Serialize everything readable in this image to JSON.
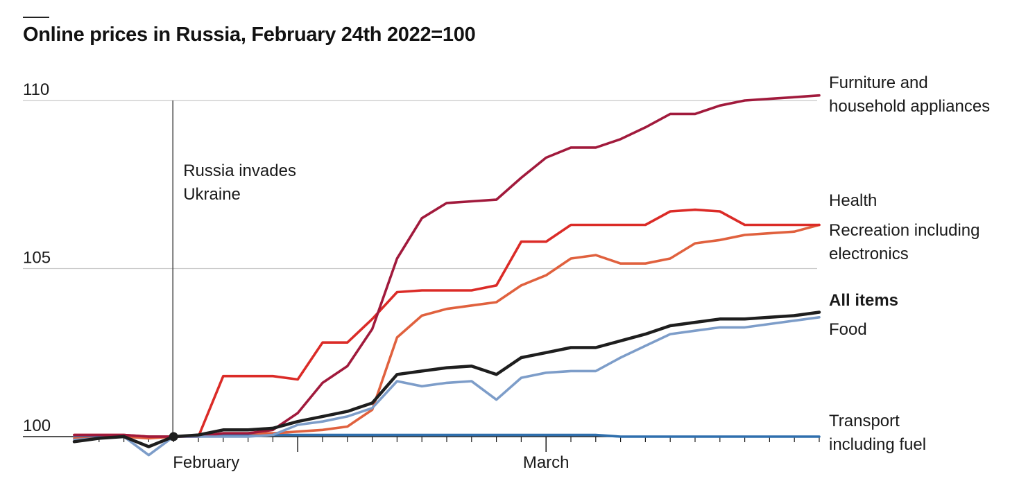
{
  "title": "Online prices in Russia, February 24th 2022=100",
  "colors": {
    "furniture": "#a11a3c",
    "health": "#db2b27",
    "recreation": "#e0613e",
    "all_items": "#1e1e1e",
    "food": "#7d9dc9",
    "transport": "#2f6fad",
    "gridline": "#c8c8c8",
    "axis": "#1a1a1a"
  },
  "annotation": {
    "lines": [
      "Russia invades",
      "Ukraine"
    ],
    "x_index": 4
  },
  "chart_data": {
    "type": "line",
    "title": "Online prices in Russia, February 24th 2022=100",
    "xlabel": "",
    "ylabel": "",
    "ylim": [
      100,
      110
    ],
    "yticks": [
      100,
      105,
      110
    ],
    "x_count": 31,
    "x_tick_labels": [
      {
        "label": "February",
        "index": 4
      },
      {
        "label": "March",
        "index": 19
      }
    ],
    "major_tick_indices": [
      9,
      19
    ],
    "grid": true,
    "legend": "direct labels at right",
    "baseline_marker_index": 4,
    "series": [
      {
        "key": "furniture",
        "name": "Furniture and household appliances",
        "label_lines": [
          "Furniture and",
          "household appliances"
        ],
        "bold": false,
        "values": [
          100.05,
          100.05,
          100.05,
          100.0,
          100.0,
          100.0,
          100.1,
          100.1,
          100.2,
          100.7,
          101.6,
          102.1,
          103.2,
          105.3,
          106.5,
          106.95,
          107.0,
          107.05,
          107.7,
          108.3,
          108.6,
          108.6,
          108.85,
          109.2,
          109.6,
          109.6,
          109.85,
          110.0,
          110.05,
          110.1,
          110.15
        ]
      },
      {
        "key": "health",
        "name": "Health",
        "label_lines": [
          "Health"
        ],
        "bold": false,
        "values": [
          100.05,
          100.05,
          100.05,
          100.0,
          100.0,
          100.0,
          101.8,
          101.8,
          101.8,
          101.7,
          102.8,
          102.8,
          103.5,
          104.3,
          104.35,
          104.35,
          104.35,
          104.5,
          105.8,
          105.8,
          106.3,
          106.3,
          106.3,
          106.3,
          106.7,
          106.75,
          106.7,
          106.3,
          106.3,
          106.3,
          106.3
        ]
      },
      {
        "key": "recreation",
        "name": "Recreation including electronics",
        "label_lines": [
          "Recreation including",
          "electronics"
        ],
        "bold": false,
        "values": [
          99.95,
          99.95,
          100.0,
          99.95,
          100.0,
          100.0,
          100.1,
          100.1,
          100.1,
          100.15,
          100.2,
          100.3,
          100.8,
          102.95,
          103.6,
          103.8,
          103.9,
          104.0,
          104.5,
          104.8,
          105.3,
          105.4,
          105.15,
          105.15,
          105.3,
          105.75,
          105.85,
          106.0,
          106.05,
          106.1,
          106.3
        ]
      },
      {
        "key": "all_items",
        "name": "All items",
        "label_lines": [
          "All items"
        ],
        "bold": true,
        "values": [
          99.85,
          99.95,
          100.0,
          99.7,
          100.0,
          100.05,
          100.2,
          100.2,
          100.25,
          100.45,
          100.6,
          100.75,
          101.0,
          101.85,
          101.95,
          102.05,
          102.1,
          101.85,
          102.35,
          102.5,
          102.65,
          102.65,
          102.85,
          103.05,
          103.3,
          103.4,
          103.5,
          103.5,
          103.55,
          103.6,
          103.7
        ]
      },
      {
        "key": "food",
        "name": "Food",
        "label_lines": [
          "Food"
        ],
        "bold": false,
        "values": [
          99.9,
          99.95,
          100.0,
          99.45,
          100.0,
          100.0,
          100.0,
          100.0,
          100.05,
          100.35,
          100.45,
          100.6,
          100.85,
          101.65,
          101.5,
          101.6,
          101.65,
          101.1,
          101.75,
          101.9,
          101.95,
          101.95,
          102.35,
          102.7,
          103.05,
          103.15,
          103.25,
          103.25,
          103.35,
          103.45,
          103.55
        ]
      },
      {
        "key": "transport",
        "name": "Transport including fuel",
        "label_lines": [
          "Transport",
          "including fuel"
        ],
        "bold": false,
        "values": [
          100.0,
          100.0,
          100.0,
          100.0,
          100.0,
          100.0,
          100.05,
          100.05,
          100.05,
          100.05,
          100.05,
          100.05,
          100.05,
          100.05,
          100.05,
          100.05,
          100.05,
          100.05,
          100.05,
          100.05,
          100.05,
          100.05,
          100.0,
          100.0,
          100.0,
          100.0,
          100.0,
          100.0,
          100.0,
          100.0,
          100.0
        ]
      }
    ]
  }
}
